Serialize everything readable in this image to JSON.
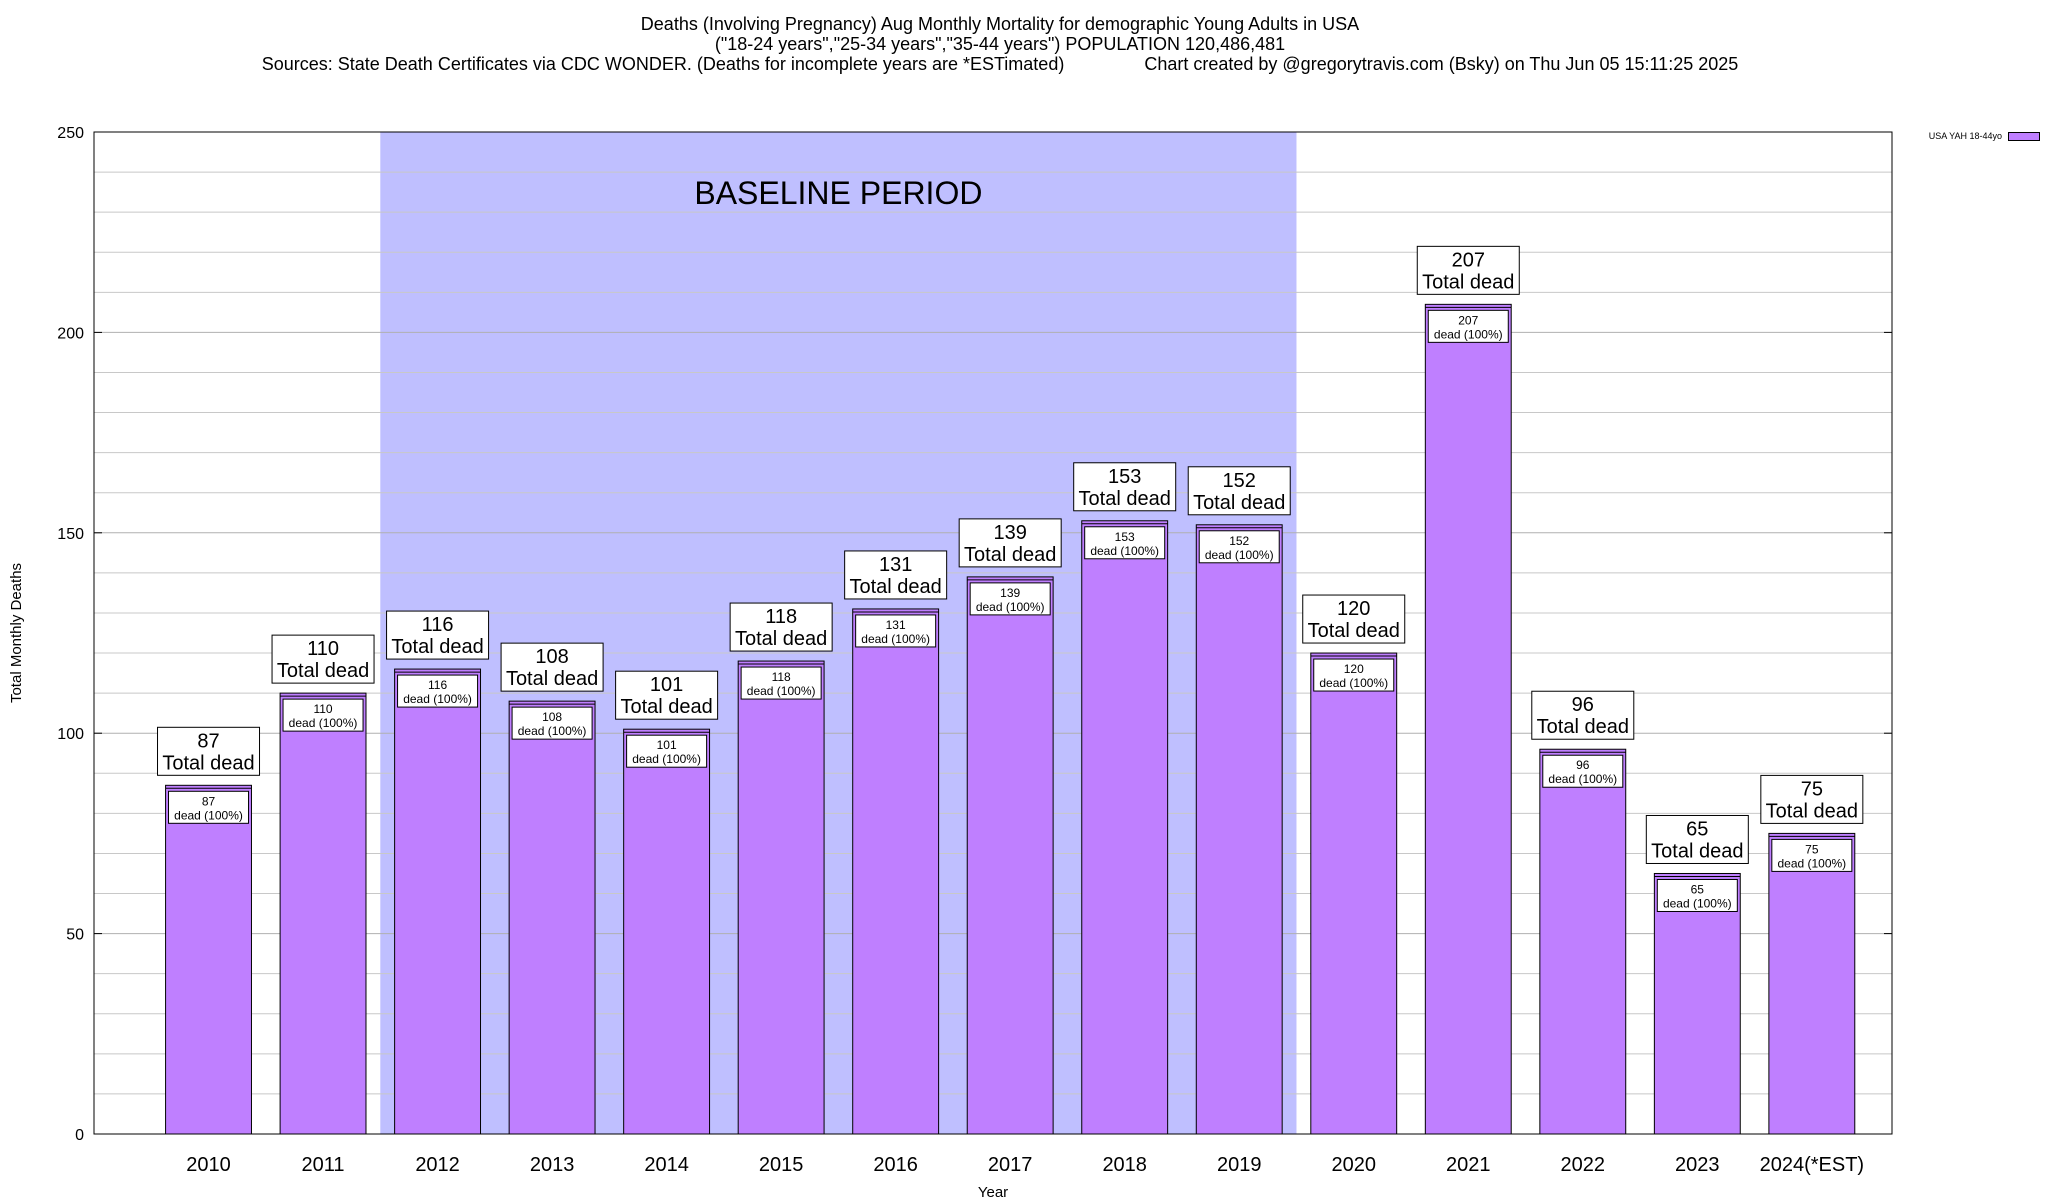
{
  "chart_data": {
    "type": "bar",
    "title": "Deaths (Involving Pregnancy) Aug Monthly Mortality for demographic Young Adults in USA",
    "subtitle": "(\"18-24 years\",\"25-34 years\",\"35-44 years\") POPULATION 120,486,481",
    "source_line": "Sources: State Death Certificates via CDC WONDER. (Deaths for incomplete years are *ESTimated)",
    "credit_line": "Chart created by @gregorytravis.com (Bsky) on Thu Jun 05 15:11:25 2025",
    "xlabel": "Year",
    "ylabel": "Total Monthly Deaths",
    "ylim": [
      0,
      250
    ],
    "yticks": [
      0,
      50,
      100,
      150,
      200,
      250
    ],
    "categories": [
      "2010",
      "2011",
      "2012",
      "2013",
      "2014",
      "2015",
      "2016",
      "2017",
      "2018",
      "2019",
      "2020",
      "2021",
      "2022",
      "2023",
      "2024(*EST)"
    ],
    "values": [
      87,
      110,
      116,
      108,
      101,
      118,
      131,
      139,
      153,
      152,
      120,
      207,
      96,
      65,
      75
    ],
    "series_label": "USA YAH 18-44yo",
    "bar_color": "#bf7fff",
    "total_label_suffix": "Total dead",
    "inner_label_suffix": "dead (100%)",
    "baseline": {
      "label": "BASELINE PERIOD",
      "from": "2012",
      "to": "2019",
      "color": "#bfbfff"
    },
    "grid": true,
    "legend_position": "top-right"
  }
}
